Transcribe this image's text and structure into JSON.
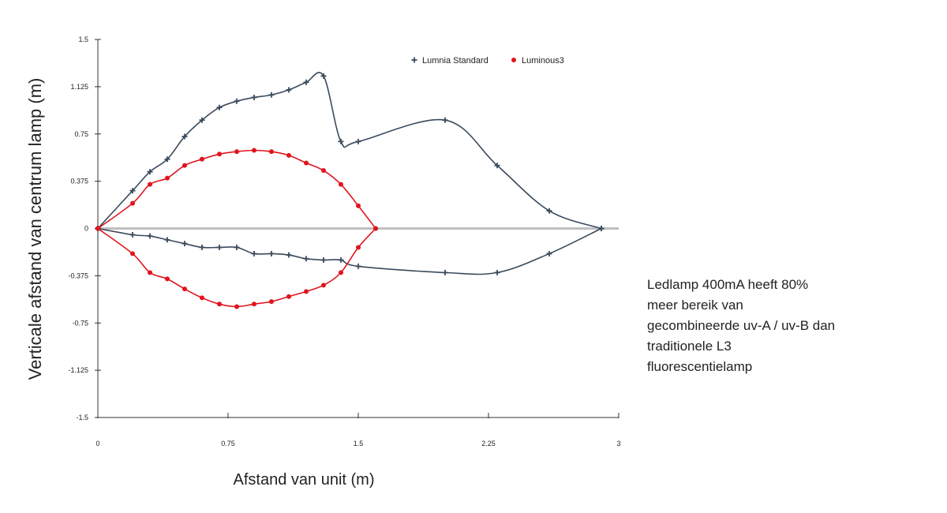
{
  "chart_data": {
    "type": "line",
    "xlabel": "Afstand van unit (m)",
    "ylabel": "Verticale afstand van centrum lamp (m)",
    "xlim": [
      0,
      3
    ],
    "ylim": [
      -1.5,
      1.5
    ],
    "x_ticks": [
      "0",
      "0.75",
      "1.5",
      "2.25",
      "3"
    ],
    "y_ticks": [
      "1.5",
      "1.125",
      "0.75",
      "0.375",
      "0",
      "-0.375",
      "-0.75",
      "-1.125",
      "-1.5"
    ],
    "legend_position": "top-right",
    "series": [
      {
        "name": "Lumnia Standard",
        "color": "#3a4a5c",
        "marker": "plus",
        "upper": [
          [
            0,
            0
          ],
          [
            0.2,
            0.3
          ],
          [
            0.3,
            0.45
          ],
          [
            0.4,
            0.55
          ],
          [
            0.5,
            0.73
          ],
          [
            0.6,
            0.86
          ],
          [
            0.7,
            0.96
          ],
          [
            0.8,
            1.01
          ],
          [
            0.9,
            1.04
          ],
          [
            1.0,
            1.06
          ],
          [
            1.1,
            1.1
          ],
          [
            1.2,
            1.16
          ],
          [
            1.3,
            1.21
          ],
          [
            1.4,
            0.69
          ],
          [
            1.5,
            0.69
          ],
          [
            2.0,
            0.86
          ],
          [
            2.3,
            0.5
          ],
          [
            2.6,
            0.14
          ],
          [
            2.9,
            0
          ]
        ],
        "lower": [
          [
            0,
            0
          ],
          [
            0.2,
            -0.05
          ],
          [
            0.3,
            -0.06
          ],
          [
            0.4,
            -0.09
          ],
          [
            0.5,
            -0.12
          ],
          [
            0.6,
            -0.15
          ],
          [
            0.7,
            -0.15
          ],
          [
            0.8,
            -0.15
          ],
          [
            0.9,
            -0.2
          ],
          [
            1.0,
            -0.2
          ],
          [
            1.1,
            -0.21
          ],
          [
            1.2,
            -0.24
          ],
          [
            1.3,
            -0.25
          ],
          [
            1.4,
            -0.25
          ],
          [
            1.5,
            -0.3
          ],
          [
            2.0,
            -0.35
          ],
          [
            2.3,
            -0.35
          ],
          [
            2.6,
            -0.2
          ],
          [
            2.9,
            0
          ]
        ]
      },
      {
        "name": "Luminous3",
        "color": "#e0141e",
        "marker": "dot",
        "upper": [
          [
            0,
            0
          ],
          [
            0.2,
            0.2
          ],
          [
            0.3,
            0.35
          ],
          [
            0.4,
            0.4
          ],
          [
            0.5,
            0.5
          ],
          [
            0.6,
            0.55
          ],
          [
            0.7,
            0.59
          ],
          [
            0.8,
            0.61
          ],
          [
            0.9,
            0.62
          ],
          [
            1.0,
            0.61
          ],
          [
            1.1,
            0.58
          ],
          [
            1.2,
            0.52
          ],
          [
            1.3,
            0.46
          ],
          [
            1.4,
            0.35
          ],
          [
            1.5,
            0.18
          ],
          [
            1.6,
            0
          ]
        ],
        "lower": [
          [
            0,
            0
          ],
          [
            0.2,
            -0.2
          ],
          [
            0.3,
            -0.35
          ],
          [
            0.4,
            -0.4
          ],
          [
            0.5,
            -0.48
          ],
          [
            0.6,
            -0.55
          ],
          [
            0.7,
            -0.6
          ],
          [
            0.8,
            -0.62
          ],
          [
            0.9,
            -0.6
          ],
          [
            1.0,
            -0.58
          ],
          [
            1.1,
            -0.54
          ],
          [
            1.2,
            -0.5
          ],
          [
            1.3,
            -0.45
          ],
          [
            1.4,
            -0.35
          ],
          [
            1.5,
            -0.15
          ],
          [
            1.6,
            0
          ]
        ]
      }
    ]
  },
  "note": {
    "text": "Ledlamp 400mA heeft 80% meer bereik van gecombineerde uv-A / uv-B dan traditionele L3 fluorescentielamp"
  }
}
